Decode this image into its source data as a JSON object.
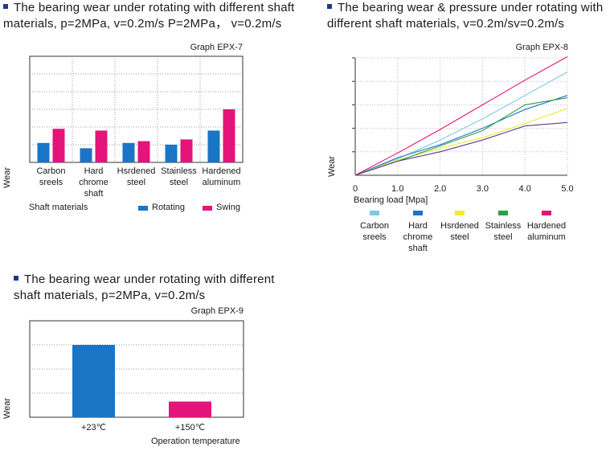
{
  "chart_data": [
    {
      "type": "bar",
      "heading": "The bearing wear under rotating with different shaft materials, p=2MPa, v=0.2m/s P=2MPa， v=0.2m/s",
      "graph_id": "Graph  EPX-7",
      "categories": [
        "Carbon\nsreels",
        "Hard\nchrome\nshaft",
        "Hsrdened\nsteel",
        "Stainless\nsteel",
        "Hardened\naluminum"
      ],
      "xlabel": "Shaft materials",
      "ylabel": "Wear",
      "ylim": [
        0,
        6
      ],
      "grid": true,
      "series": [
        {
          "name": "Rotating",
          "color": "#1b75c5",
          "values": [
            1.1,
            0.8,
            1.1,
            1.0,
            1.8
          ]
        },
        {
          "name": "Swing",
          "color": "#e4147a",
          "values": [
            1.9,
            1.8,
            1.2,
            1.3,
            3.0
          ]
        }
      ]
    },
    {
      "type": "line",
      "heading": "The bearing wear & pressure under rotating with different shaft materials, v=0.2m/sv=0.2m/s",
      "graph_id": "Graph  EPX-8",
      "xlabel": "Bearing load  [Mpa]",
      "ylabel": "Wear",
      "x_ticks": [
        "0",
        "1.0",
        "2.0",
        "3.0",
        "4.0",
        "5.0"
      ],
      "xlim": [
        0,
        5
      ],
      "ylim": [
        0,
        5
      ],
      "grid": true,
      "series": [
        {
          "name": "Carbon\nsreels",
          "color": "#7ec8e3",
          "x": [
            0,
            1,
            2,
            3,
            4,
            5
          ],
          "y": [
            0,
            0.7,
            1.5,
            2.4,
            3.4,
            4.4
          ]
        },
        {
          "name": "Hard\nchrome\nshaft",
          "color": "#1b75c5",
          "x": [
            0,
            1,
            2,
            3,
            4,
            5
          ],
          "y": [
            0,
            0.75,
            1.3,
            2.0,
            2.8,
            3.4
          ]
        },
        {
          "name": "Hsrdened\nsteel",
          "color": "#f2ea2c",
          "x": [
            0,
            1,
            2,
            3,
            4,
            5
          ],
          "y": [
            0,
            0.65,
            1.15,
            1.6,
            2.2,
            2.85
          ]
        },
        {
          "name": "Stainless\nsteel",
          "color": "#2e9e44",
          "x": [
            0,
            1,
            2,
            3,
            4,
            5
          ],
          "y": [
            0,
            0.6,
            1.25,
            1.9,
            3.0,
            3.3
          ]
        },
        {
          "name": "Hardened\naluminum",
          "color": "#e4147a",
          "x": [
            0,
            1,
            2,
            3,
            4,
            5
          ],
          "y": [
            0,
            0.95,
            1.95,
            3.0,
            4.05,
            5.05
          ]
        },
        {
          "name": "",
          "color": "#5b3c8f",
          "x": [
            0,
            1,
            2,
            3,
            4,
            5
          ],
          "y": [
            0,
            0.6,
            1.0,
            1.5,
            2.1,
            2.25
          ]
        }
      ]
    },
    {
      "type": "bar",
      "heading": "The bearing wear under rotating with different shaft materials,  p=2MPa, v=0.2m/s",
      "graph_id": "Graph  EPX-9",
      "categories": [
        "+23℃",
        "+150℃"
      ],
      "xlabel": "Operation temperature",
      "ylabel": "Wear",
      "ylim": [
        0,
        4
      ],
      "grid": true,
      "series": [
        {
          "name": "",
          "colors": [
            "#1b75c5",
            "#e4147a"
          ],
          "values": [
            3.0,
            0.65
          ]
        }
      ]
    }
  ]
}
